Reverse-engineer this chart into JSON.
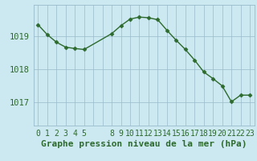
{
  "x_values": [
    0,
    1,
    2,
    3,
    4,
    5,
    8,
    9,
    10,
    11,
    12,
    13,
    14,
    15,
    16,
    17,
    18,
    19,
    20,
    21,
    22,
    23
  ],
  "y_values": [
    1019.35,
    1019.05,
    1018.82,
    1018.67,
    1018.63,
    1018.6,
    1019.08,
    1019.32,
    1019.52,
    1019.58,
    1019.56,
    1019.5,
    1019.18,
    1018.88,
    1018.6,
    1018.28,
    1017.92,
    1017.72,
    1017.5,
    1017.02,
    1017.22,
    1017.22
  ],
  "line_color": "#2d6a2d",
  "marker": "D",
  "marker_size": 2.5,
  "bg_color": "#cce8f0",
  "grid_color": "#99bbcc",
  "ylabel_ticks": [
    1017,
    1018,
    1019
  ],
  "ylim": [
    1016.3,
    1019.95
  ],
  "xlim": [
    -0.5,
    23.5
  ],
  "xlabel": "Graphe pression niveau de la mer (hPa)",
  "label_fontsize": 7.5,
  "xlabel_fontsize": 8.0,
  "linewidth": 1.0,
  "x_show": [
    0,
    1,
    2,
    3,
    4,
    5,
    8,
    9,
    10,
    11,
    12,
    13,
    14,
    15,
    16,
    17,
    18,
    19,
    20,
    21,
    22,
    23
  ]
}
